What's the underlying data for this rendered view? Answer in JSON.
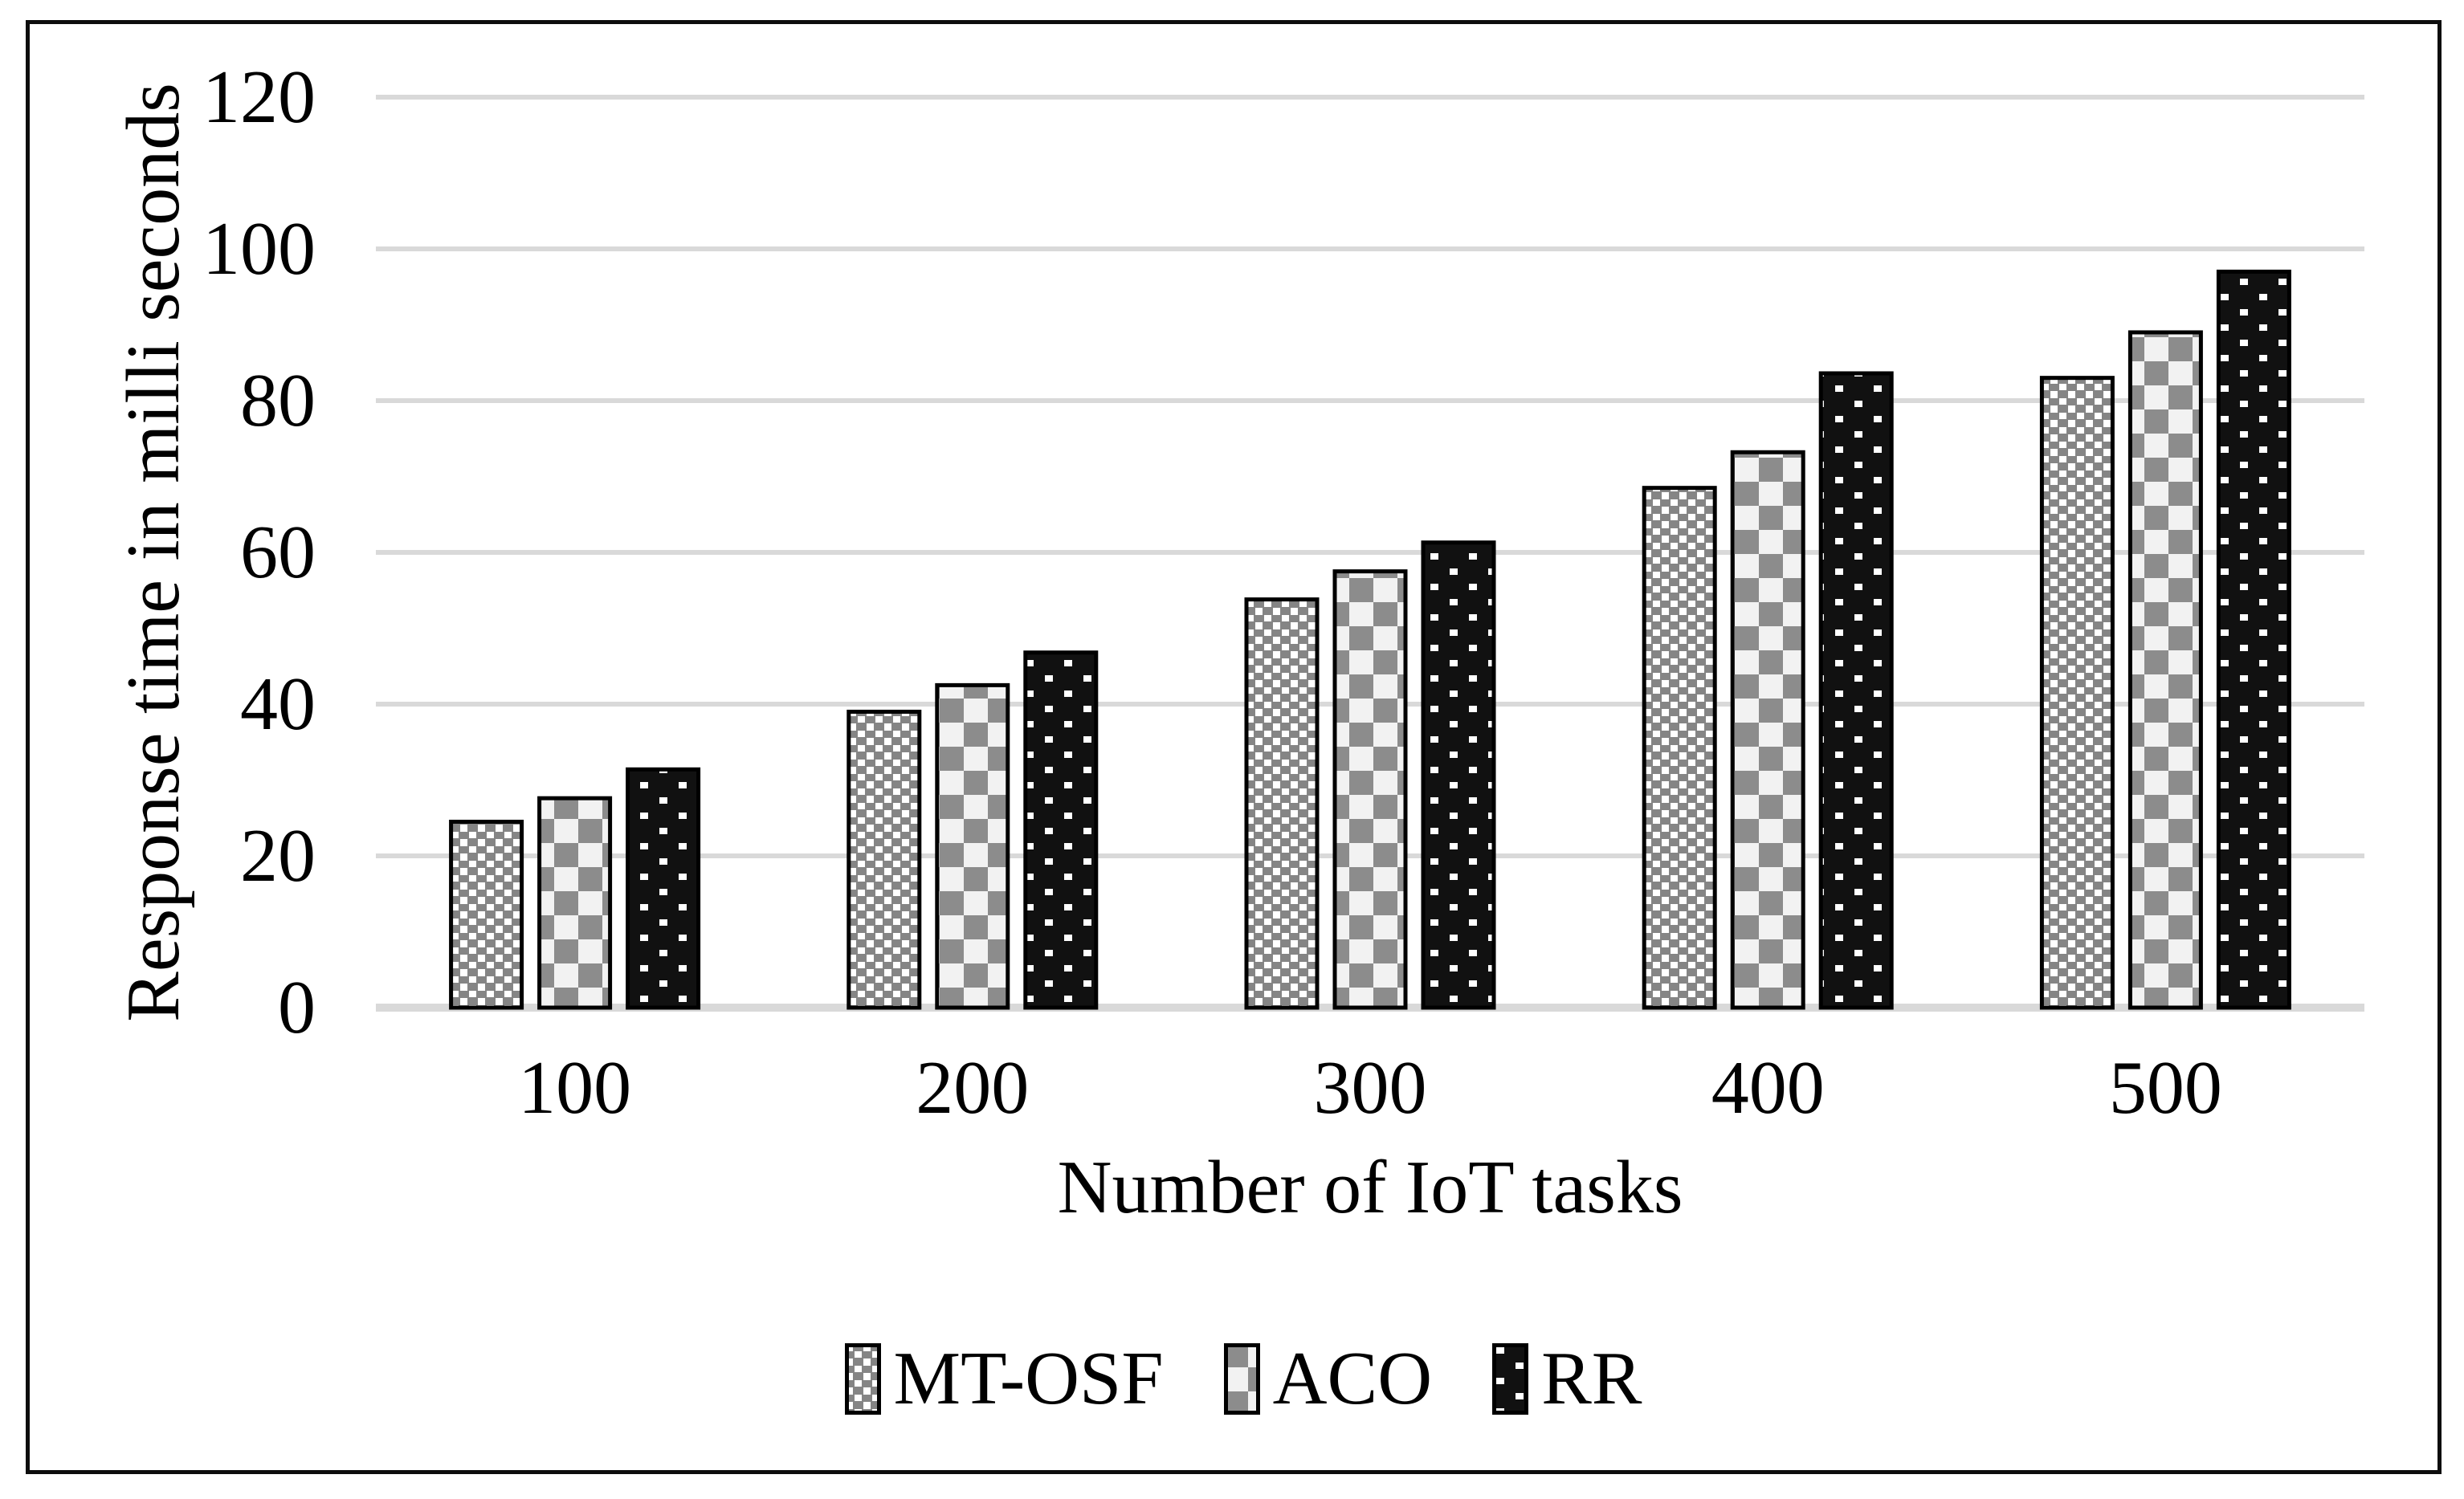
{
  "figure": {
    "kind": "bar-chart-figure",
    "border_color": "#0d0d0d",
    "background": "#ffffff"
  },
  "chart_data": {
    "type": "bar",
    "title": "",
    "xlabel": "Number of IoT tasks",
    "ylabel": "Response time in milli seconds",
    "categories": [
      "100",
      "200",
      "300",
      "400",
      "500"
    ],
    "series": [
      {
        "name": "MT-OSF",
        "pattern": "diagonal-hatch",
        "values": [
          24.5,
          39.0,
          53.8,
          68.5,
          83.0
        ]
      },
      {
        "name": "ACO",
        "pattern": "checkerboard",
        "values": [
          27.6,
          42.5,
          57.5,
          73.2,
          89.0
        ]
      },
      {
        "name": "RR",
        "pattern": "dotted-black",
        "values": [
          31.4,
          46.8,
          61.3,
          83.6,
          97.0
        ]
      }
    ],
    "ylim": [
      0,
      120
    ],
    "yticks": [
      0,
      20,
      40,
      60,
      80,
      100,
      120
    ],
    "grid": true,
    "legend_position": "bottom",
    "colors": {
      "hatch_gray": "#858585",
      "checker_gray": "#8c8c8c",
      "checker_light": "#f2f2f2",
      "dot_black": "#111111",
      "bar_outline": "#000000",
      "gridline": "#d9d9d9",
      "text": "#000000"
    }
  }
}
